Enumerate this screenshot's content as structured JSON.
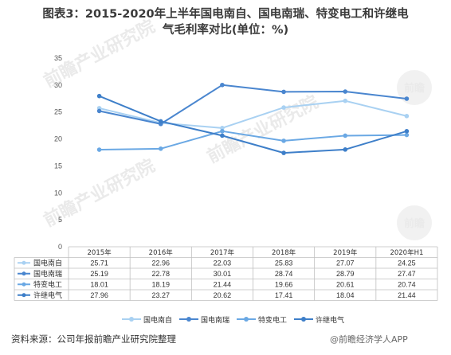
{
  "title": {
    "line1": "图表3：2015-2020年上半年国电南自、国电南瑞、特变电工和许继电",
    "line2": "气毛利率对比(单位：%)"
  },
  "watermark": {
    "text": "前瞻产业研究院",
    "mark": "前瞻"
  },
  "source": "资料来源：公司年报前瞻产业研究院整理",
  "brand": "@前瞻经济学人APP",
  "chart_data": {
    "type": "line",
    "categories": [
      "2015年",
      "2016年",
      "2017年",
      "2018年",
      "2019年",
      "2020年H1"
    ],
    "ylim": [
      0,
      35
    ],
    "yticks": [
      0,
      5,
      10,
      15,
      20,
      25,
      30,
      35
    ],
    "grid": false,
    "legend": "bottom",
    "series": [
      {
        "name": "国电南自",
        "values": [
          25.71,
          22.96,
          22.03,
          25.83,
          27.07,
          24.25
        ],
        "display": [
          "25.71",
          "22.96",
          "22.03",
          "25.83",
          "27.07",
          "24.25"
        ],
        "color": "#a9d1f2"
      },
      {
        "name": "国电南瑞",
        "values": [
          25.19,
          22.78,
          30.01,
          28.74,
          28.79,
          27.47
        ],
        "display": [
          "25.19",
          "22.78",
          "30.01",
          "28.74",
          "28.79",
          "27.47"
        ],
        "color": "#4a86cf"
      },
      {
        "name": "特变电工",
        "values": [
          18.01,
          18.19,
          21.44,
          19.66,
          20.61,
          20.74
        ],
        "display": [
          "18.01",
          "18.19",
          "21.44",
          "19.66",
          "20.61",
          "20.74"
        ],
        "color": "#6aa8e4"
      },
      {
        "name": "许继电气",
        "values": [
          27.96,
          23.27,
          20.62,
          17.41,
          18.04,
          21.44
        ],
        "display": [
          "27.96",
          "23.27",
          "20.62",
          "17.41",
          "18.04",
          "21.44"
        ],
        "color": "#3e7fc9"
      }
    ]
  }
}
